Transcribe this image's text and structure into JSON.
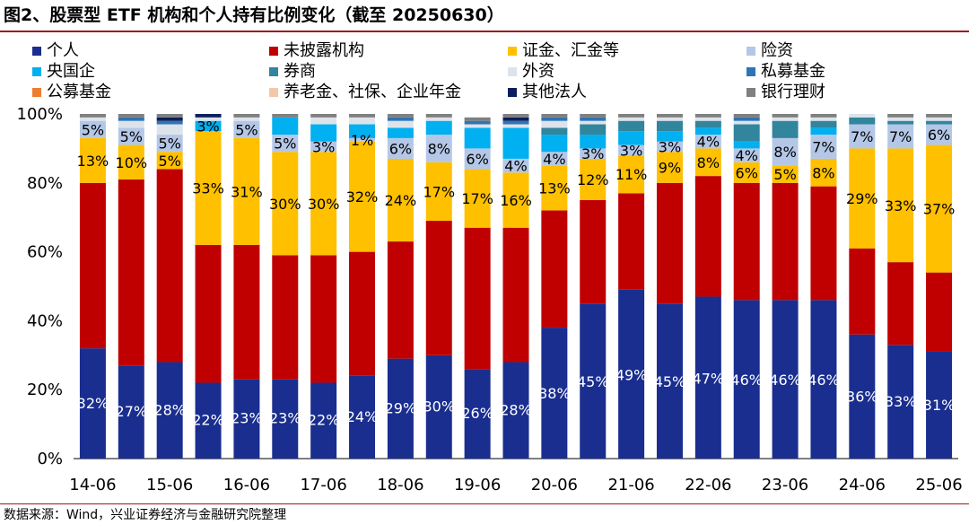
{
  "title": "图2、股票型 ETF 机构和个人持有比例变化（截至 20250630）",
  "source": "数据来源：Wind，兴业证券经济与金融研究院整理",
  "chart_data": {
    "type": "bar",
    "stacked": true,
    "ylim": [
      0,
      100
    ],
    "yticks": [
      0,
      20,
      40,
      60,
      80,
      100
    ],
    "ytick_labels": [
      "0%",
      "20%",
      "40%",
      "60%",
      "80%",
      "100%"
    ],
    "categories": [
      "14-06",
      "14-12",
      "15-06",
      "15-12",
      "16-06",
      "16-12",
      "17-06",
      "17-12",
      "18-06",
      "18-12",
      "19-06",
      "19-12",
      "20-06",
      "20-12",
      "21-06",
      "21-12",
      "22-06",
      "22-12",
      "23-06",
      "23-12",
      "24-06",
      "24-12",
      "25-06"
    ],
    "xtick_labels": [
      "14-06",
      "15-06",
      "16-06",
      "17-06",
      "18-06",
      "19-06",
      "20-06",
      "21-06",
      "22-06",
      "23-06",
      "24-06",
      "25-06"
    ],
    "legend_columns": 4,
    "series": [
      {
        "name": "个人",
        "color": "#1a2e8f",
        "label_color": "#ffffff",
        "values": [
          32,
          27,
          28,
          22,
          23,
          23,
          22,
          24,
          29,
          30,
          26,
          28,
          38,
          45,
          49,
          45,
          47,
          46,
          46,
          46,
          36,
          33,
          31
        ],
        "labels": [
          "32%",
          "27%",
          "28%",
          "22%",
          "23%",
          "23%",
          "22%",
          "24%",
          "29%",
          "30%",
          "26%",
          "28%",
          "38%",
          "45%",
          "49%",
          "45%",
          "47%",
          "46%",
          "46%",
          "46%",
          "36%",
          "33%",
          "31%"
        ]
      },
      {
        "name": "未披露机构",
        "color": "#c00000",
        "label_color": "#000000",
        "values": [
          48,
          54,
          56,
          40,
          39,
          36,
          37,
          36,
          34,
          39,
          41,
          39,
          34,
          30,
          28,
          35,
          35,
          34,
          34,
          33,
          25,
          24,
          23
        ],
        "labels": [
          "",
          "",
          "",
          "",
          "",
          "",
          "",
          "",
          "",
          "",
          "",
          "",
          "",
          "",
          "",
          "",
          "",
          "",
          "",
          "",
          "",
          "",
          ""
        ]
      },
      {
        "name": "证金、汇金等",
        "color": "#ffc000",
        "label_color": "#000000",
        "values": [
          13,
          10,
          5,
          33,
          31,
          30,
          30,
          32,
          24,
          17,
          17,
          16,
          13,
          12,
          11,
          9,
          8,
          6,
          5,
          8,
          29,
          33,
          37
        ],
        "labels": [
          "13%",
          "10%",
          "5%",
          "33%",
          "31%",
          "30%",
          "30%",
          "32%",
          "24%",
          "17%",
          "17%",
          "16%",
          "13%",
          "12%",
          "11%",
          "9%",
          "8%",
          "6%",
          "5%",
          "8%",
          "29%",
          "33%",
          "37%"
        ]
      },
      {
        "name": "险资",
        "color": "#b4c7e7",
        "label_color": "#000000",
        "values": [
          5,
          5,
          5,
          0,
          5,
          5,
          3,
          1,
          6,
          8,
          6,
          4,
          4,
          3,
          3,
          3,
          4,
          4,
          8,
          7,
          7,
          7,
          6
        ],
        "labels": [
          "5%",
          "5%",
          "5%",
          "",
          "5%",
          "5%",
          "3%",
          "1%",
          "6%",
          "8%",
          "6%",
          "4%",
          "4%",
          "3%",
          "3%",
          "3%",
          "4%",
          "4%",
          "8%",
          "7%",
          "7%",
          "7%",
          "6%"
        ]
      },
      {
        "name": "央国企",
        "color": "#00b0f0",
        "label_color": "#000000",
        "values": [
          0,
          0,
          0,
          3,
          0,
          5,
          5,
          4,
          3,
          4,
          6,
          9,
          5,
          4,
          4,
          3,
          2,
          2,
          0,
          2,
          0,
          0,
          0
        ],
        "labels": [
          "",
          "",
          "",
          "3%",
          "",
          "",
          "",
          "",
          "",
          "",
          "",
          "",
          "",
          "",
          "",
          "",
          "",
          "",
          "",
          "",
          "",
          "",
          ""
        ]
      },
      {
        "name": "券商",
        "color": "#31859c",
        "label_color": "#000000",
        "values": [
          0,
          0,
          0,
          0,
          0,
          0,
          0,
          0,
          0,
          0,
          0,
          0,
          2,
          3,
          3,
          3,
          2,
          5,
          5,
          2,
          2,
          1,
          1
        ],
        "labels": [
          "",
          "",
          "",
          "",
          "",
          "",
          "",
          "",
          "",
          "",
          "",
          "",
          "",
          "",
          "",
          "",
          "",
          "",
          "",
          "",
          "",
          "",
          ""
        ]
      },
      {
        "name": "外资",
        "color": "#dde3ea",
        "label_color": "#000000",
        "values": [
          1,
          2,
          3,
          1,
          1,
          0,
          2,
          2,
          2,
          1,
          1,
          1,
          2,
          1,
          1,
          1,
          1,
          1,
          1,
          1,
          1,
          1,
          1
        ],
        "labels": [
          "",
          "",
          "",
          "",
          "",
          "",
          "",
          "",
          "",
          "",
          "",
          "",
          "",
          "",
          "",
          "",
          "",
          "",
          "",
          "",
          "",
          "",
          ""
        ]
      },
      {
        "name": "私募基金",
        "color": "#2e75b6",
        "label_color": "#000000",
        "values": [
          0,
          1,
          1,
          0,
          0,
          0,
          0,
          0,
          1,
          0,
          1,
          1,
          1,
          1,
          0,
          0,
          0,
          1,
          0,
          0,
          0,
          0,
          0
        ],
        "labels": [
          "",
          "",
          "",
          "",
          "",
          "",
          "",
          "",
          "",
          "",
          "",
          "",
          "",
          "",
          "",
          "",
          "",
          "",
          "",
          "",
          "",
          "",
          ""
        ]
      },
      {
        "name": "公募基金",
        "color": "#ed7d31",
        "label_color": "#000000",
        "values": [
          0,
          0,
          0,
          0,
          0,
          0,
          0,
          0,
          0,
          0,
          0,
          0,
          0,
          0,
          0,
          0,
          0,
          0,
          0,
          0,
          0,
          0,
          0
        ],
        "labels": [
          "",
          "",
          "",
          "",
          "",
          "",
          "",
          "",
          "",
          "",
          "",
          "",
          "",
          "",
          "",
          "",
          "",
          "",
          "",
          "",
          "",
          "",
          ""
        ]
      },
      {
        "name": "养老金、社保、企业年金",
        "color": "#f4c7a8",
        "label_color": "#000000",
        "values": [
          0,
          0,
          0,
          0,
          0,
          0,
          0,
          0,
          0,
          0,
          0,
          0,
          0,
          0,
          0,
          0,
          0,
          0,
          0,
          0,
          0,
          0,
          0
        ],
        "labels": [
          "",
          "",
          "",
          "",
          "",
          "",
          "",
          "",
          "",
          "",
          "",
          "",
          "",
          "",
          "",
          "",
          "",
          "",
          "",
          "",
          "",
          "",
          ""
        ]
      },
      {
        "name": "其他法人",
        "color": "#0b1f5c",
        "label_color": "#000000",
        "values": [
          0,
          0,
          1,
          1,
          0,
          0,
          0,
          0,
          0,
          0,
          0,
          1,
          0,
          0,
          0,
          0,
          0,
          0,
          0,
          0,
          0,
          0,
          0
        ],
        "labels": [
          "",
          "",
          "",
          "",
          "",
          "",
          "",
          "",
          "",
          "",
          "",
          "",
          "",
          "",
          "",
          "",
          "",
          "",
          "",
          "",
          "",
          "",
          ""
        ]
      },
      {
        "name": "银行理财",
        "color": "#7f7f7f",
        "label_color": "#000000",
        "values": [
          1,
          1,
          1,
          0,
          1,
          1,
          1,
          1,
          1,
          1,
          1,
          1,
          1,
          1,
          1,
          1,
          1,
          1,
          1,
          1,
          0,
          1,
          1
        ],
        "labels": [
          "",
          "",
          "",
          "",
          "",
          "",
          "",
          "",
          "",
          "",
          "",
          "",
          "",
          "",
          "",
          "",
          "",
          "",
          "",
          "",
          "",
          "",
          ""
        ]
      }
    ]
  }
}
